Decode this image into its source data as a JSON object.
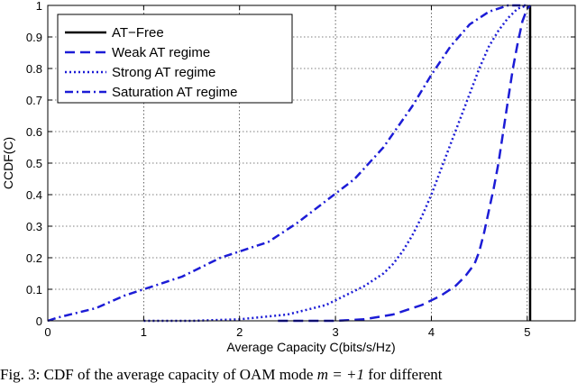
{
  "chart_data": {
    "type": "line",
    "title": "",
    "xlabel": "Average Capacity C(bits/s/Hz)",
    "ylabel": "CCDF(C)",
    "xlim": [
      0,
      5.5
    ],
    "ylim": [
      0,
      1
    ],
    "x_ticks": [
      0,
      1,
      2,
      3,
      4,
      5
    ],
    "y_ticks": [
      0,
      0.1,
      0.2,
      0.3,
      0.4,
      0.5,
      0.6,
      0.7,
      0.8,
      0.9,
      1
    ],
    "x_tick_labels": [
      "0",
      "1",
      "2",
      "3",
      "4",
      "5"
    ],
    "y_tick_labels": [
      "0",
      "0.1",
      "0.2",
      "0.3",
      "0.4",
      "0.5",
      "0.6",
      "0.7",
      "0.8",
      "0.9",
      "1"
    ],
    "grid": true,
    "legend_position": "top-left",
    "series": [
      {
        "name": "AT−Free",
        "style": "solid",
        "color": "#000000",
        "x": [
          5.03,
          5.03
        ],
        "y": [
          0,
          1
        ]
      },
      {
        "name": "Weak AT regime",
        "style": "dashed",
        "color": "#1c1cd6",
        "x": [
          2.4,
          3.0,
          3.3,
          3.6,
          3.9,
          4.1,
          4.25,
          4.35,
          4.45,
          4.5,
          4.55,
          4.6,
          4.65,
          4.7,
          4.75,
          4.8,
          4.85,
          4.9,
          4.95,
          5.0,
          5.03
        ],
        "y": [
          0,
          0,
          0.005,
          0.02,
          0.05,
          0.08,
          0.11,
          0.14,
          0.18,
          0.22,
          0.28,
          0.35,
          0.42,
          0.5,
          0.6,
          0.7,
          0.8,
          0.88,
          0.95,
          0.99,
          1.0
        ]
      },
      {
        "name": "Strong AT regime",
        "style": "dotted",
        "color": "#1c1cd6",
        "x": [
          1.0,
          1.5,
          2.0,
          2.5,
          2.9,
          3.1,
          3.3,
          3.5,
          3.6,
          3.7,
          3.8,
          3.9,
          4.0,
          4.1,
          4.2,
          4.3,
          4.4,
          4.5,
          4.6,
          4.7,
          4.8,
          4.9,
          5.0
        ],
        "y": [
          0,
          0,
          0.005,
          0.02,
          0.05,
          0.08,
          0.11,
          0.15,
          0.18,
          0.22,
          0.27,
          0.33,
          0.4,
          0.48,
          0.56,
          0.64,
          0.72,
          0.8,
          0.87,
          0.92,
          0.96,
          0.99,
          1.0
        ]
      },
      {
        "name": "Saturation AT regime",
        "style": "dashdot",
        "color": "#1c1cd6",
        "x": [
          0,
          0.1,
          0.5,
          0.8,
          1.0,
          1.4,
          1.8,
          2.1,
          2.3,
          2.6,
          2.9,
          3.2,
          3.5,
          3.8,
          4.0,
          4.2,
          4.4,
          4.6,
          4.8,
          4.9,
          5.0
        ],
        "y": [
          0,
          0.01,
          0.04,
          0.08,
          0.1,
          0.14,
          0.2,
          0.23,
          0.25,
          0.31,
          0.38,
          0.45,
          0.55,
          0.68,
          0.78,
          0.87,
          0.94,
          0.98,
          1.0,
          1.0,
          1.0
        ]
      }
    ]
  },
  "caption": {
    "text": "Fig. 3: CDF of the average capacity of OAM mode",
    "math": "m = +1",
    "tail": "for different"
  }
}
